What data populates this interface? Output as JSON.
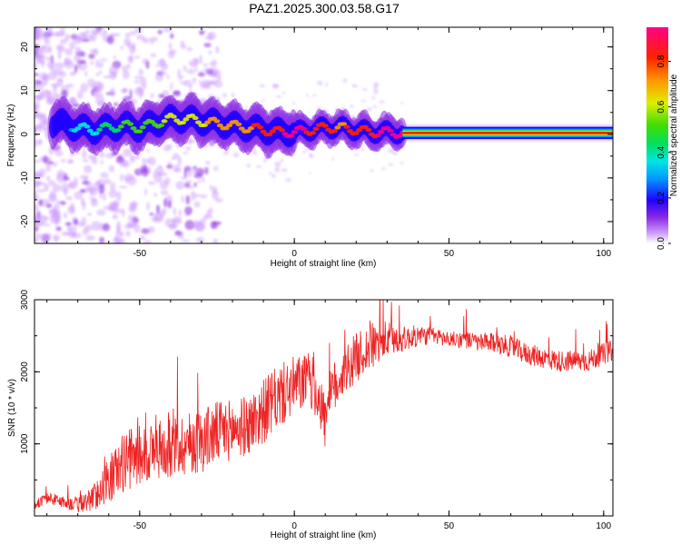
{
  "chart_data": [
    {
      "type": "heatmap",
      "title": "PAZ1.2025.300.03.58.G17",
      "xlabel": "Height of straight line (km)",
      "ylabel": "Frequency (Hz)",
      "xlim": [
        -84,
        103
      ],
      "ylim": [
        -25,
        24.5
      ],
      "xticks": [
        -50,
        0,
        50,
        100
      ],
      "yticks": [
        -20,
        -10,
        0,
        10,
        20
      ],
      "xtick_labels": [
        "-50",
        "0",
        "50",
        "100"
      ],
      "ytick_labels": [
        "-20",
        "-10",
        "0",
        "10",
        "20"
      ],
      "colorbar": {
        "label": "Normalized spectral amplitude",
        "range": [
          0,
          0.95
        ],
        "ticks": [
          0.0,
          0.2,
          0.4,
          0.6,
          0.8
        ],
        "tick_labels": [
          "0.0",
          "0.2",
          "0.4",
          "0.6",
          "0.8"
        ],
        "colormap": "rainbow"
      },
      "ridge": {
        "x": [
          -75,
          -70,
          -65,
          -60,
          -55,
          -50,
          -45,
          -40,
          -35,
          -30,
          -25,
          -20,
          -15,
          -10,
          -5,
          0,
          5,
          10,
          15,
          20,
          25,
          30,
          35,
          40,
          50,
          60,
          70,
          80,
          90,
          100,
          103
        ],
        "y": [
          2.5,
          1.5,
          1.0,
          1.5,
          2.0,
          1.5,
          2.5,
          3.5,
          3.5,
          3.0,
          2.5,
          2.0,
          1.5,
          1.0,
          0.5,
          0.5,
          1.0,
          1.5,
          1.5,
          1.0,
          0.5,
          0.5,
          0.3,
          0.3,
          0.3,
          0.3,
          0.3,
          0.3,
          0.3,
          0.3,
          0.3
        ],
        "amplitude": [
          0.25,
          0.3,
          0.35,
          0.4,
          0.45,
          0.45,
          0.5,
          0.55,
          0.55,
          0.6,
          0.65,
          0.7,
          0.7,
          0.75,
          0.8,
          0.85,
          0.8,
          0.75,
          0.7,
          0.75,
          0.8,
          0.85,
          0.9,
          0.9,
          0.9,
          0.9,
          0.9,
          0.9,
          0.9,
          0.9,
          0.9
        ]
      }
    },
    {
      "type": "line",
      "title": "",
      "xlabel": "Height of straight line (km)",
      "ylabel": "SNR (10 * v/v)",
      "xlim": [
        -84,
        103
      ],
      "ylim": [
        0,
        3000
      ],
      "xticks": [
        -50,
        0,
        50,
        100
      ],
      "yticks": [
        1000,
        2000,
        3000
      ],
      "xtick_labels": [
        "-50",
        "0",
        "50",
        "100"
      ],
      "ytick_labels": [
        "1000",
        "2000",
        "3000"
      ],
      "color": "#ee2222",
      "series": [
        {
          "name": "SNR",
          "x": [
            -84,
            -80,
            -75,
            -70,
            -65,
            -60,
            -55,
            -50,
            -45,
            -40,
            -35,
            -30,
            -25,
            -20,
            -15,
            -10,
            -5,
            0,
            5,
            8,
            10,
            12,
            15,
            20,
            25,
            30,
            35,
            40,
            45,
            50,
            55,
            60,
            65,
            70,
            75,
            80,
            85,
            90,
            95,
            100,
            103
          ],
          "y": [
            150,
            250,
            200,
            150,
            250,
            500,
            750,
            850,
            900,
            950,
            1000,
            1050,
            1150,
            1200,
            1250,
            1450,
            1650,
            1800,
            1900,
            1650,
            1300,
            1700,
            1950,
            2200,
            2350,
            2450,
            2450,
            2500,
            2500,
            2450,
            2450,
            2400,
            2400,
            2350,
            2250,
            2200,
            2150,
            2150,
            2150,
            2250,
            2300
          ],
          "noise": [
            60,
            80,
            90,
            110,
            180,
            320,
            420,
            420,
            420,
            420,
            450,
            450,
            450,
            420,
            420,
            450,
            450,
            420,
            380,
            400,
            400,
            380,
            360,
            340,
            330,
            260,
            180,
            150,
            120,
            110,
            120,
            130,
            140,
            150,
            150,
            150,
            150,
            150,
            150,
            150,
            150
          ]
        }
      ]
    }
  ]
}
